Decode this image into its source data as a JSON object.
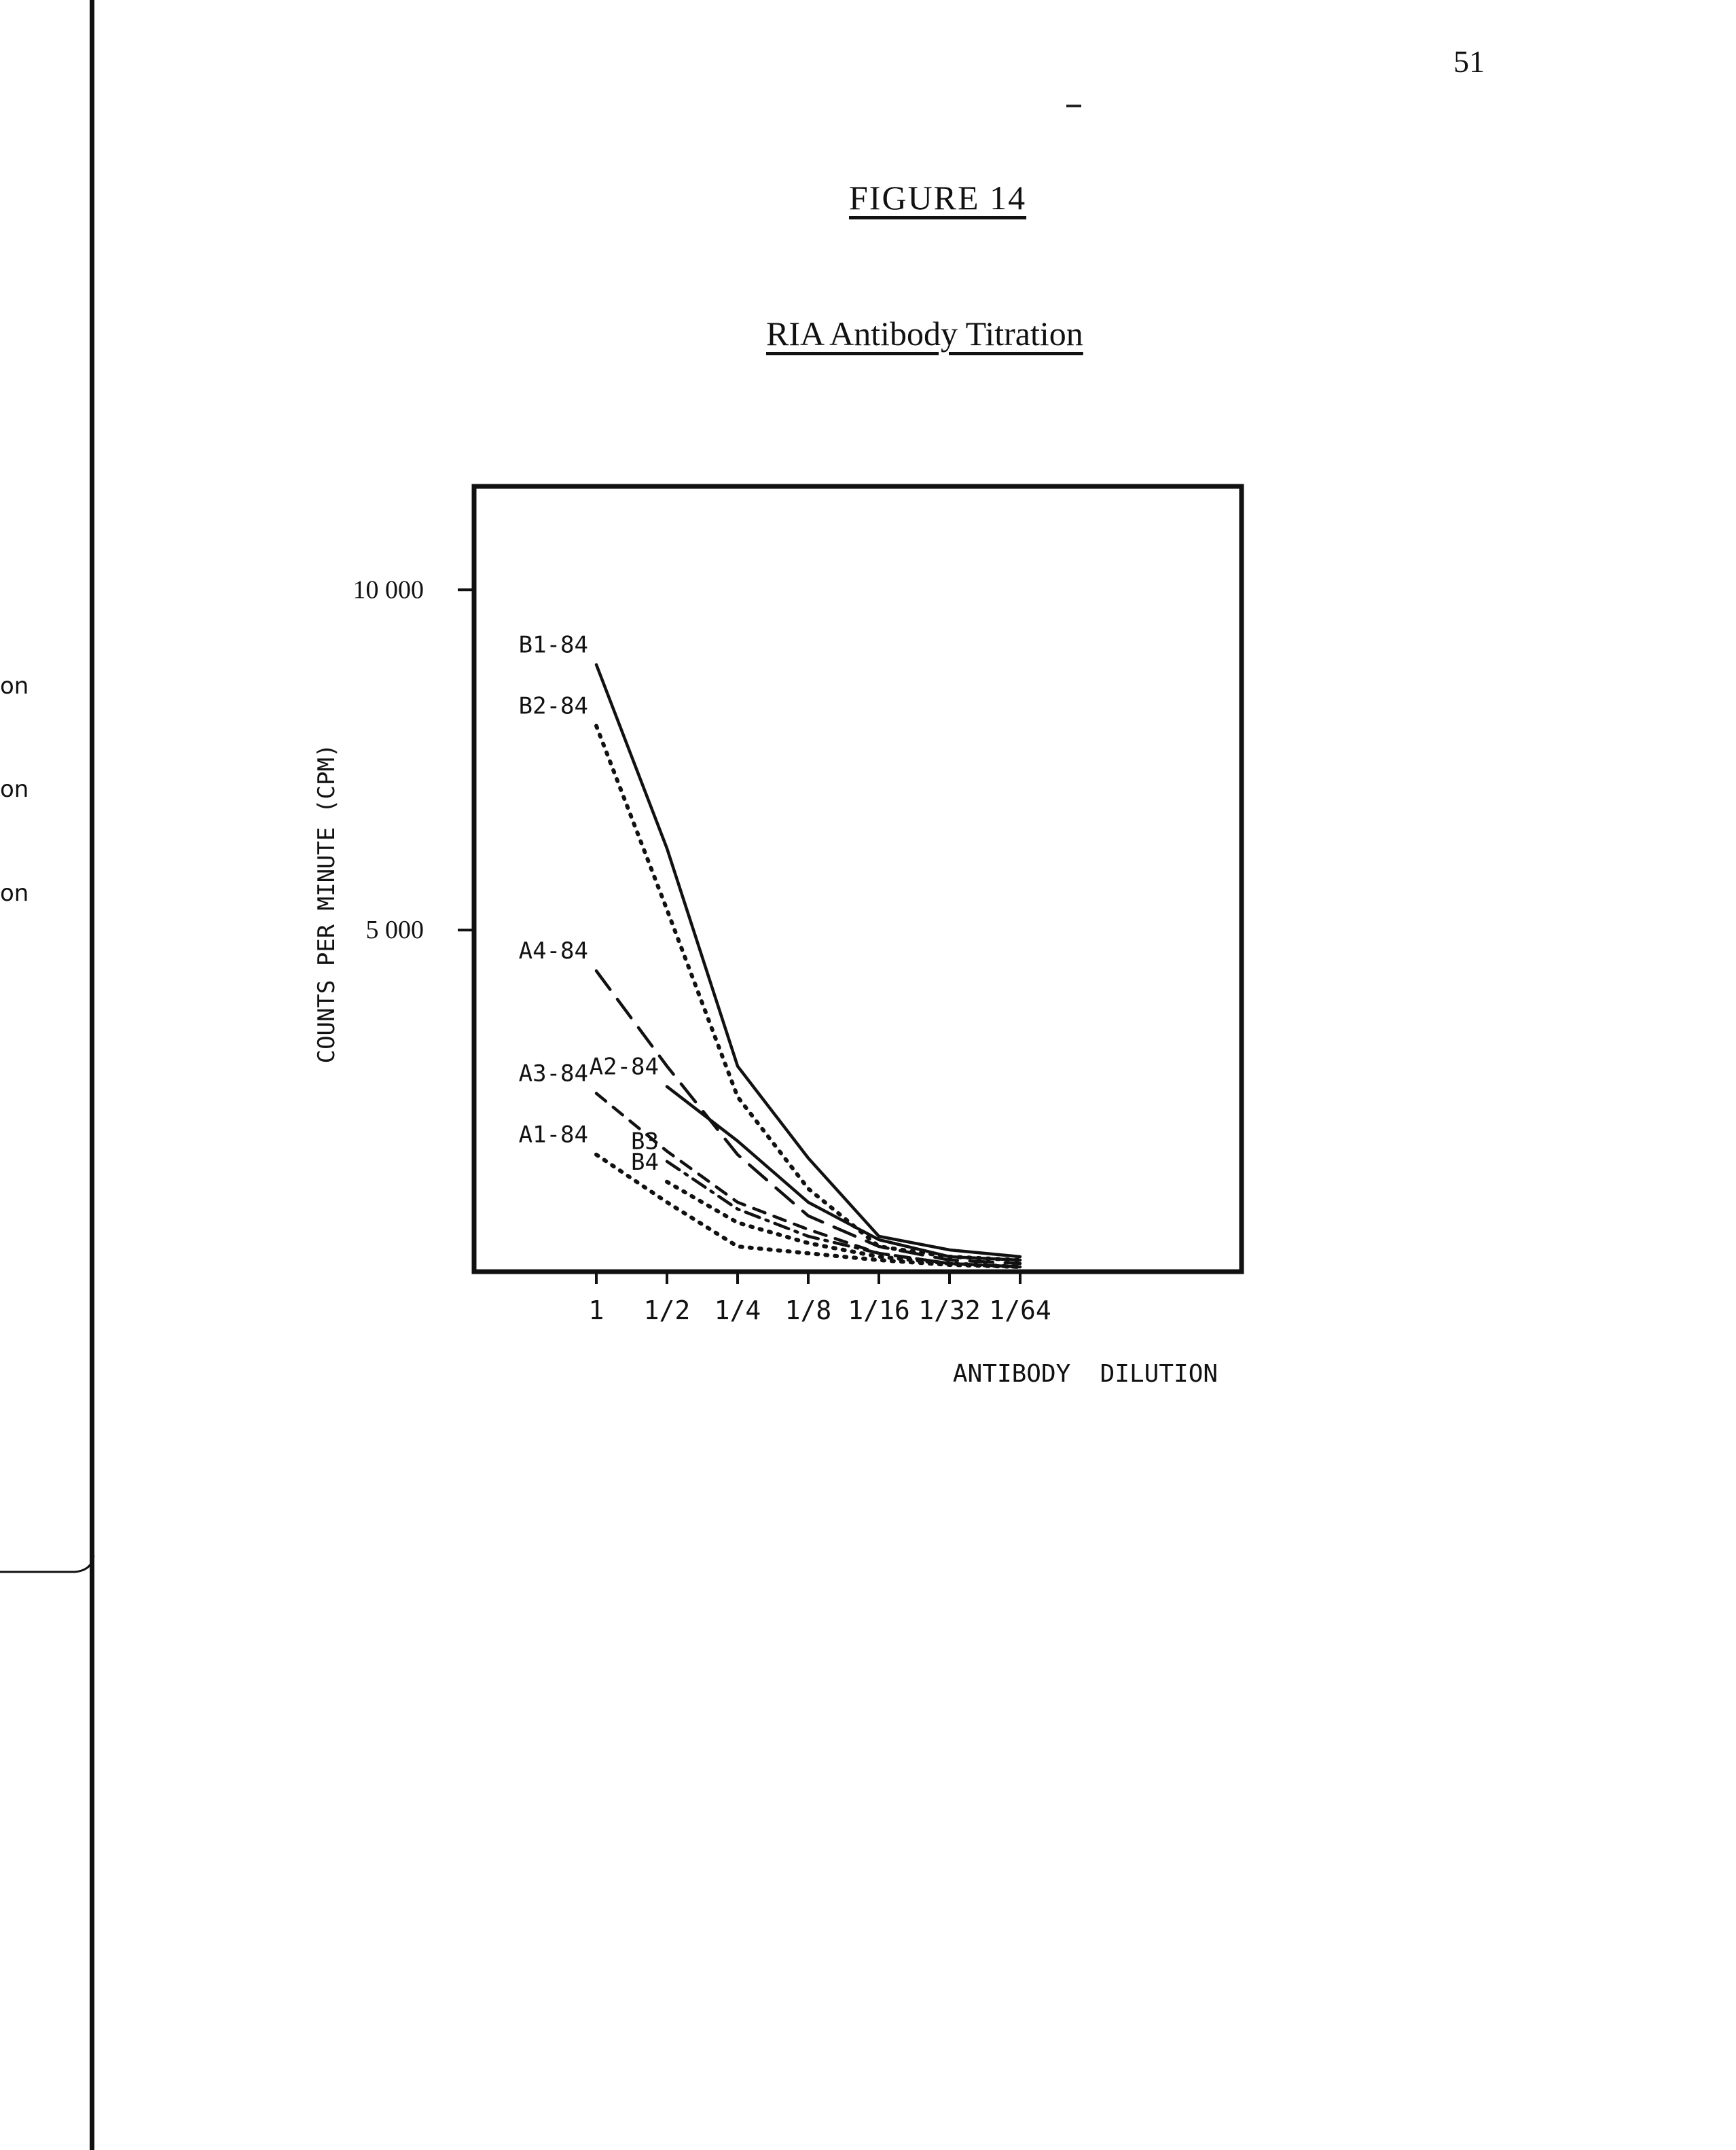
{
  "page_number": "51",
  "figure_label": "FIGURE 14",
  "side_fragments": [
    "on",
    "on",
    "on"
  ],
  "colors": {
    "ink": "#111111",
    "paper": "#ffffff"
  },
  "chart_data": {
    "type": "line",
    "title": "RIA Antibody Titration",
    "xlabel": "ANTIBODY  DILUTION",
    "ylabel": "COUNTS  PER  MINUTE   (CPM)",
    "categories": [
      "1",
      "1/2",
      "1/4",
      "1/8",
      "1/16",
      "1/32",
      "1/64"
    ],
    "y_ticks": [
      {
        "value": 5000,
        "label": "5 000"
      },
      {
        "value": 10000,
        "label": "10 000"
      }
    ],
    "ylim": [
      0,
      11500
    ],
    "grid": false,
    "legend": "none",
    "series": [
      {
        "name": "B1-84",
        "style": "solid",
        "values": [
          8900,
          6200,
          3000,
          1650,
          500,
          300,
          200
        ]
      },
      {
        "name": "B2-84",
        "style": "dotted",
        "values": [
          8000,
          5300,
          2550,
          1200,
          350,
          200,
          150
        ]
      },
      {
        "name": "A4-84",
        "style": "long-dash",
        "values": [
          4400,
          3000,
          1700,
          800,
          350,
          150,
          100
        ]
      },
      {
        "name": "A2-84",
        "style": "solid",
        "values": [
          null,
          2700,
          1900,
          1000,
          450,
          200,
          150
        ]
      },
      {
        "name": "A3-84",
        "style": "dashed",
        "values": [
          2600,
          1750,
          1000,
          600,
          250,
          100,
          50
        ]
      },
      {
        "name": "B3",
        "style": "dash-dot",
        "values": [
          null,
          1600,
          900,
          500,
          250,
          100,
          50
        ]
      },
      {
        "name": "B4",
        "style": "dotted",
        "values": [
          null,
          1300,
          700,
          400,
          200,
          100,
          50
        ]
      },
      {
        "name": "A1-84",
        "style": "dotted",
        "values": [
          1700,
          1000,
          350,
          250,
          150,
          80,
          50
        ]
      }
    ]
  }
}
